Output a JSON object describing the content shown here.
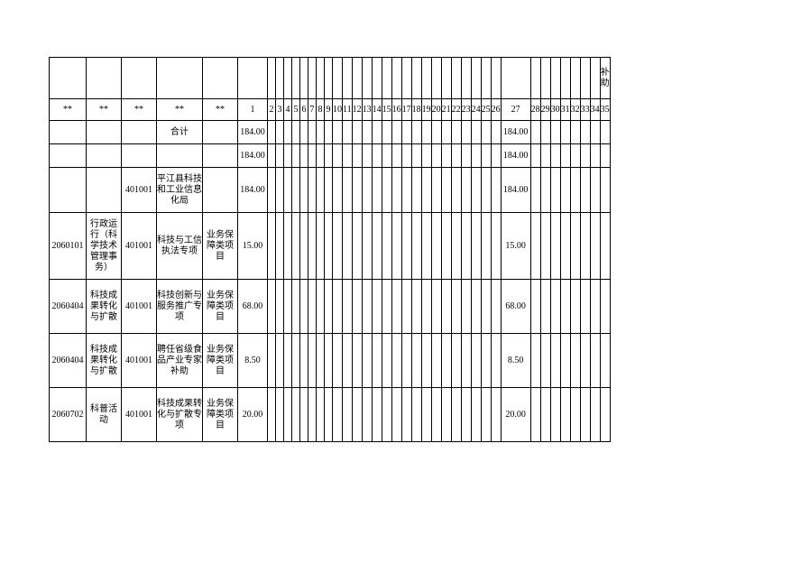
{
  "table": {
    "type": "table",
    "background_color": "#ffffff",
    "border_color": "#000000",
    "text_color": "#000000",
    "font_family": "SimSun",
    "font_size_pt": 8,
    "columns": [
      {
        "key": "col0",
        "width": 40,
        "align": "center"
      },
      {
        "key": "col1",
        "width": 38,
        "align": "center"
      },
      {
        "key": "col2",
        "width": 38,
        "align": "center"
      },
      {
        "key": "col3",
        "width": 50,
        "align": "center"
      },
      {
        "key": "col4",
        "width": 38,
        "align": "center"
      },
      {
        "key": "col5_num1",
        "width": 32,
        "align": "center"
      },
      {
        "key": "col6_num2",
        "width": 8
      },
      {
        "key": "col7_num3",
        "width": 8
      },
      {
        "key": "col8_num4",
        "width": 8
      },
      {
        "key": "col9_num5",
        "width": 8
      },
      {
        "key": "col10_num6",
        "width": 8
      },
      {
        "key": "col11_num7",
        "width": 8
      },
      {
        "key": "col12_num8",
        "width": 8
      },
      {
        "key": "col13_num9",
        "width": 8
      },
      {
        "key": "col14_num10",
        "width": 8
      },
      {
        "key": "col15_num11",
        "width": 8
      },
      {
        "key": "col16_num12",
        "width": 8
      },
      {
        "key": "col17_num13",
        "width": 8
      },
      {
        "key": "col18_num14",
        "width": 8
      },
      {
        "key": "col19_num15",
        "width": 8
      },
      {
        "key": "col20_num16",
        "width": 8
      },
      {
        "key": "col21_num17",
        "width": 8
      },
      {
        "key": "col22_num18",
        "width": 8
      },
      {
        "key": "col23_num19",
        "width": 8
      },
      {
        "key": "col24_num20",
        "width": 8
      },
      {
        "key": "col25_num21",
        "width": 8
      },
      {
        "key": "col26_num22",
        "width": 8
      },
      {
        "key": "col27_num23",
        "width": 8
      },
      {
        "key": "col28_num24",
        "width": 8
      },
      {
        "key": "col29_num25",
        "width": 8
      },
      {
        "key": "col30_num26",
        "width": 8
      },
      {
        "key": "col31_num27",
        "width": 32
      },
      {
        "key": "col32_num28",
        "width": 8
      },
      {
        "key": "col33_num29",
        "width": 8
      },
      {
        "key": "col34_num30",
        "width": 8
      },
      {
        "key": "col35_num31",
        "width": 8
      },
      {
        "key": "col36_num32",
        "width": 8
      },
      {
        "key": "col37_num33",
        "width": 8
      },
      {
        "key": "col38_num34",
        "width": 8
      },
      {
        "key": "col39_num35",
        "width": 8
      }
    ],
    "top_header": {
      "last_cell": "补助"
    },
    "second_header": {
      "stars": [
        "**",
        "**",
        "**",
        "**",
        "**"
      ],
      "numbers": [
        "1",
        "2",
        "3",
        "4",
        "5",
        "6",
        "7",
        "8",
        "9",
        "10",
        "11",
        "12",
        "13",
        "14",
        "15",
        "16",
        "17",
        "18",
        "19",
        "20",
        "21",
        "22",
        "23",
        "24",
        "25",
        "26",
        "27",
        "28",
        "29",
        "30",
        "31",
        "32",
        "33",
        "34",
        "35"
      ]
    },
    "rows": [
      {
        "c0": "",
        "c1": "",
        "c2": "",
        "c3": "合计",
        "c4": "",
        "v1": "184.00",
        "v27": "184.00"
      },
      {
        "c0": "",
        "c1": "",
        "c2": "",
        "c3": "",
        "c4": "",
        "v1": "184.00",
        "v27": "184.00"
      },
      {
        "c0": "",
        "c1": "",
        "c2": "401001",
        "c3": "平江县科技和工业信息化局",
        "c4": "",
        "v1": "184.00",
        "v27": "184.00"
      },
      {
        "c0": "2060101",
        "c1": "行政运行（科学技术管理事务）",
        "c2": "401001",
        "c3": "科技与工信执法专项",
        "c4": "业务保障类项目",
        "v1": "15.00",
        "v27": "15.00"
      },
      {
        "c0": "2060404",
        "c1": "科技成果转化与扩散",
        "c2": "401001",
        "c3": "科技创新与服务推广专项",
        "c4": "业务保障类项目",
        "v1": "68.00",
        "v27": "68.00"
      },
      {
        "c0": "2060404",
        "c1": "科技成果转化与扩散",
        "c2": "401001",
        "c3": "聘任省级食品产业专家补助",
        "c4": "业务保障类项目",
        "v1": "8.50",
        "v27": "8.50"
      },
      {
        "c0": "2060702",
        "c1": "科普活动",
        "c2": "401001",
        "c3": "科技成果转化与扩散专项",
        "c4": "业务保障类项目",
        "v1": "20.00",
        "v27": "20.00"
      }
    ]
  }
}
